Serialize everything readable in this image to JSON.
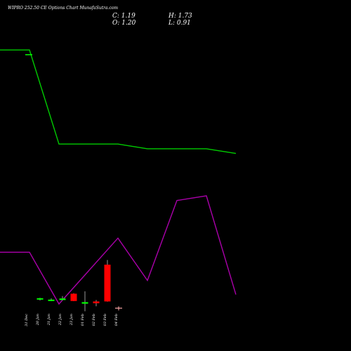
{
  "header": {
    "title": "WIPRO 252.50  CE Options  Chart MunafaSutra.com",
    "close_label": "C: 1.19",
    "high_label": "H: 1.73",
    "open_label": "O: 1.20",
    "low_label": "L: 0.91"
  },
  "colors": {
    "background": "#000000",
    "up": "#00ff00",
    "down": "#ff0000",
    "line_green": "#00cc00",
    "line_magenta": "#aa00aa",
    "text": "#ffffff"
  },
  "chart_data": {
    "type": "candlestick",
    "categories": [
      "31 Dec",
      "20 Jan",
      "21 Jan",
      "22 Jan",
      "23 Jan",
      "01 Feb",
      "02 Feb",
      "03 Feb",
      "04 Feb"
    ],
    "candles": [
      {
        "date": "31 Dec",
        "open": null,
        "high": null,
        "low": null,
        "close": null
      },
      {
        "date": "20 Jan",
        "open": 0.61,
        "high": 0.74,
        "low": 0.55,
        "close": 0.71
      },
      {
        "date": "21 Jan",
        "open": 0.55,
        "high": 0.7,
        "low": 0.5,
        "close": 0.61
      },
      {
        "date": "22 Jan",
        "open": 0.58,
        "high": 0.86,
        "low": 0.58,
        "close": 0.69
      },
      {
        "date": "23 Jan",
        "open": 1.03,
        "high": 1.06,
        "low": 0.5,
        "close": 0.51
      },
      {
        "date": "01 Feb",
        "open": 0.32,
        "high": 1.2,
        "low": -0.22,
        "close": 0.43
      },
      {
        "date": "02 Feb",
        "open": 0.48,
        "high": 0.58,
        "low": 0.14,
        "close": 0.35
      },
      {
        "date": "03 Feb",
        "open": 3.1,
        "high": 3.43,
        "low": 0.46,
        "close": 0.48
      },
      {
        "date": "04 Feb",
        "open": 0.0,
        "high": 0.13,
        "low": -0.16,
        "close": 0.0
      }
    ],
    "series": [
      {
        "values": [
          0.64,
          0.64,
          0.44,
          0.44,
          0.44,
          0.43,
          0.43,
          0.43,
          0.42
        ]
      },
      {
        "values": [
          0.21,
          0.21,
          0.1,
          0.17,
          0.24,
          0.15,
          0.32,
          0.33,
          0.12
        ]
      }
    ],
    "marker": {
      "date": "31 Dec",
      "value": 0.63
    },
    "xlabel": "",
    "ylabel": ""
  }
}
